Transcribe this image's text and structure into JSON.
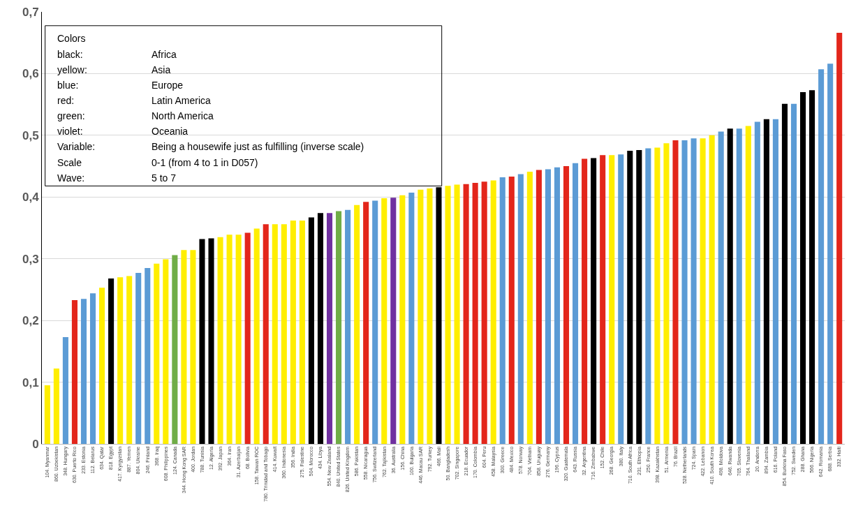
{
  "chart_data": {
    "type": "bar",
    "categories": [
      "104. Myanmar",
      "860. Uzbekistan",
      "348. Hungary",
      "630. Puerto Rico",
      "233. Estonia",
      "112. Belarus",
      "634. Qatar",
      "818. Egypt",
      "417. Kyrgyzstan",
      "887. Yemen",
      "804. Ukraine",
      "246. Finland",
      "368. Iraq",
      "608. Philippines",
      "124. Canada",
      "344. Hong Kong SAR",
      "400. Jordan",
      "788. Tunisia",
      "12. Algeria",
      "392. Japan",
      "364. Iran",
      "31. Azerbaijan",
      "68. Bolivia",
      "158. Taiwan ROC",
      "780. Trinidad and Tobago",
      "414. Kuwait",
      "360. Indonesia",
      "356. India",
      "275. Palestine",
      "504. Morocco",
      "434. Libya",
      "554. New Zealand",
      "840. United States",
      "826. United Kingdom",
      "586. Pakistan",
      "558. Nicaragua",
      "756. Switzerland",
      "762. Tajikistan",
      "36. Australia",
      "156. China",
      "100. Bulgaria",
      "446. Macau SAR",
      "792. Turkey",
      "466. Mali",
      "50. Bangladesh",
      "702. Singapore",
      "218. Ecuador",
      "170. Colombia",
      "604. Peru",
      "458. Malaysia",
      "300. Greece",
      "484. Mexico",
      "578. Norway",
      "704. Vietnam",
      "858. Uruguay",
      "276. Germany",
      "196. Cyprus",
      "320. Guatemala",
      "643. Russia",
      "32. Argentina",
      "716. Zimbabwe",
      "152. Chile",
      "268. Georgia",
      "380. Italy",
      "710. South Africa",
      "231. Ethiopia",
      "250. France",
      "398. Kazakhstan",
      "51. Armenia",
      "76. Brazil",
      "528. Netherlands",
      "724. Spain",
      "422. Lebanon",
      "410. South Korea",
      "498. Moldova",
      "646. Rwanda",
      "705. Slovenia",
      "764. Thailand",
      "20. Andorra",
      "894. Zambia",
      "616. Poland",
      "854. Burkina Faso",
      "752. Sweden",
      "288. Ghana",
      "566. Nigeria",
      "642. Romania",
      "688. Serbia",
      "332. Haiti"
    ],
    "values": [
      0.095,
      0.122,
      0.173,
      0.233,
      0.235,
      0.244,
      0.253,
      0.268,
      0.27,
      0.272,
      0.277,
      0.285,
      0.292,
      0.299,
      0.306,
      0.314,
      0.314,
      0.332,
      0.333,
      0.335,
      0.339,
      0.339,
      0.342,
      0.349,
      0.356,
      0.356,
      0.356,
      0.362,
      0.362,
      0.367,
      0.374,
      0.374,
      0.377,
      0.379,
      0.387,
      0.392,
      0.394,
      0.398,
      0.399,
      0.403,
      0.407,
      0.412,
      0.414,
      0.416,
      0.418,
      0.42,
      0.421,
      0.423,
      0.425,
      0.427,
      0.432,
      0.433,
      0.437,
      0.441,
      0.444,
      0.445,
      0.448,
      0.45,
      0.455,
      0.462,
      0.463,
      0.468,
      0.468,
      0.469,
      0.475,
      0.476,
      0.479,
      0.48,
      0.487,
      0.492,
      0.492,
      0.495,
      0.495,
      0.5,
      0.506,
      0.511,
      0.511,
      0.515,
      0.522,
      0.526,
      0.526,
      0.551,
      0.551,
      0.57,
      0.573,
      0.607,
      0.616,
      0.666
    ],
    "colors": [
      "#ffee00",
      "#ffee00",
      "#5b9bd5",
      "#e3261b",
      "#5b9bd5",
      "#5b9bd5",
      "#ffee00",
      "#000000",
      "#ffee00",
      "#ffee00",
      "#5b9bd5",
      "#5b9bd5",
      "#ffee00",
      "#ffee00",
      "#70ad47",
      "#ffee00",
      "#ffee00",
      "#000000",
      "#000000",
      "#ffee00",
      "#ffee00",
      "#ffee00",
      "#e3261b",
      "#ffee00",
      "#e3261b",
      "#ffee00",
      "#ffee00",
      "#ffee00",
      "#ffee00",
      "#000000",
      "#000000",
      "#7030a0",
      "#70ad47",
      "#5b9bd5",
      "#ffee00",
      "#e3261b",
      "#5b9bd5",
      "#ffee00",
      "#7030a0",
      "#ffee00",
      "#5b9bd5",
      "#ffee00",
      "#ffee00",
      "#000000",
      "#ffee00",
      "#ffee00",
      "#e3261b",
      "#e3261b",
      "#e3261b",
      "#ffee00",
      "#5b9bd5",
      "#e3261b",
      "#5b9bd5",
      "#ffee00",
      "#e3261b",
      "#5b9bd5",
      "#5b9bd5",
      "#e3261b",
      "#5b9bd5",
      "#e3261b",
      "#000000",
      "#e3261b",
      "#ffee00",
      "#5b9bd5",
      "#000000",
      "#000000",
      "#5b9bd5",
      "#ffee00",
      "#ffee00",
      "#e3261b",
      "#5b9bd5",
      "#5b9bd5",
      "#ffee00",
      "#ffee00",
      "#5b9bd5",
      "#000000",
      "#5b9bd5",
      "#ffee00",
      "#5b9bd5",
      "#000000",
      "#5b9bd5",
      "#000000",
      "#5b9bd5",
      "#000000",
      "#000000",
      "#5b9bd5",
      "#5b9bd5",
      "#e3261b"
    ],
    "ylim": [
      0,
      0.7
    ],
    "yticks": [
      0,
      {
        "value": 0.1,
        "label": "0,1"
      },
      {
        "value": 0.2,
        "label": "0,2"
      },
      {
        "value": 0.3,
        "label": "0,3"
      },
      {
        "value": 0.4,
        "label": "0,4"
      },
      {
        "value": 0.5,
        "label": "0,5"
      },
      {
        "value": 0.6,
        "label": "0,6"
      },
      {
        "value": 0.7,
        "label": "0,7"
      }
    ],
    "grid": "y",
    "annotations": [
      "Colors",
      "black:",
      "Africa",
      "yellow:",
      "Asia",
      "blue:",
      "Europe",
      "red:",
      "Latin America",
      "green:",
      "North America",
      "violet:",
      "Oceania",
      "Variable:",
      "Being a housewife just as fulfilling (inverse scale)",
      "Scale",
      "0-1 (from 4 to 1 in D057)",
      "Wave:",
      "5 to 7"
    ]
  }
}
